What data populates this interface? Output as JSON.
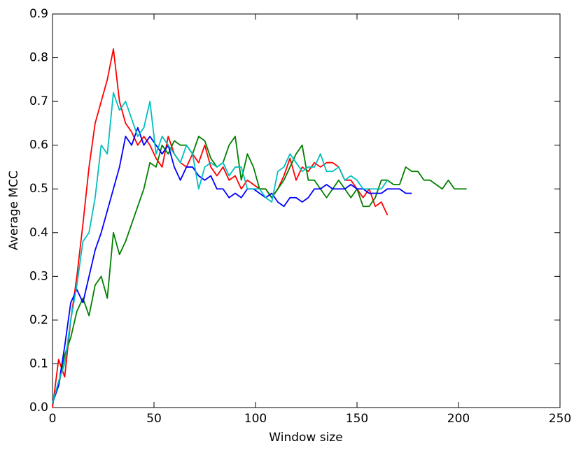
{
  "chart_data": {
    "type": "line",
    "xlabel": "Window size",
    "ylabel": "Average MCC",
    "x": [
      0,
      3,
      6,
      9,
      12,
      15,
      18,
      21,
      24,
      27,
      30,
      33,
      36,
      39,
      42,
      45,
      48,
      51,
      54,
      57,
      60,
      63,
      66,
      69,
      72,
      75,
      78,
      81,
      84,
      87,
      90,
      93,
      96,
      99,
      102,
      105,
      108,
      111,
      114,
      117,
      120,
      123,
      126,
      129,
      132,
      135,
      138,
      141,
      144,
      147,
      150,
      153,
      156,
      159,
      162,
      165,
      168,
      171,
      174,
      177,
      180,
      183,
      186,
      189,
      192,
      195,
      198,
      201,
      204
    ],
    "series": [
      {
        "color": "#ff0000",
        "values": [
          0.0,
          0.11,
          0.07,
          0.2,
          0.3,
          0.42,
          0.55,
          0.65,
          0.7,
          0.75,
          0.82,
          0.7,
          0.65,
          0.63,
          0.6,
          0.62,
          0.6,
          0.57,
          0.55,
          0.62,
          0.58,
          0.56,
          0.55,
          0.58,
          0.56,
          0.6,
          0.55,
          0.53,
          0.55,
          0.52,
          0.53,
          0.5,
          0.52,
          0.51,
          0.5,
          0.5,
          0.48,
          0.5,
          0.53,
          0.57,
          0.52,
          0.55,
          0.54,
          0.56,
          0.55,
          0.56,
          0.56,
          0.55,
          0.52,
          0.52,
          0.5,
          0.48,
          0.5,
          0.46,
          0.47,
          0.44,
          null,
          null,
          null,
          null,
          null,
          null,
          null,
          null,
          null,
          null,
          null,
          null,
          null
        ]
      },
      {
        "color": "#008000",
        "values": [
          0.01,
          0.05,
          0.12,
          0.16,
          0.22,
          0.25,
          0.21,
          0.28,
          0.3,
          0.25,
          0.4,
          0.35,
          0.38,
          0.42,
          0.46,
          0.5,
          0.56,
          0.55,
          0.6,
          0.58,
          0.61,
          0.6,
          0.6,
          0.58,
          0.62,
          0.61,
          0.57,
          0.55,
          0.56,
          0.6,
          0.62,
          0.52,
          0.58,
          0.55,
          0.5,
          0.5,
          0.48,
          0.5,
          0.52,
          0.55,
          0.58,
          0.6,
          0.52,
          0.52,
          0.5,
          0.48,
          0.5,
          0.52,
          0.5,
          0.48,
          0.5,
          0.46,
          0.46,
          0.48,
          0.52,
          0.52,
          0.51,
          0.51,
          0.55,
          0.54,
          0.54,
          0.52,
          0.52,
          0.51,
          0.5,
          0.52,
          0.5,
          0.5,
          0.5
        ]
      },
      {
        "color": "#0000ff",
        "values": [
          0.01,
          0.05,
          0.14,
          0.24,
          0.27,
          0.24,
          0.3,
          0.36,
          0.4,
          0.45,
          0.5,
          0.55,
          0.62,
          0.6,
          0.64,
          0.6,
          0.62,
          0.6,
          0.58,
          0.6,
          0.55,
          0.52,
          0.55,
          0.55,
          0.53,
          0.52,
          0.53,
          0.5,
          0.5,
          0.48,
          0.49,
          0.48,
          0.5,
          0.5,
          0.49,
          0.48,
          0.49,
          0.47,
          0.46,
          0.48,
          0.48,
          0.47,
          0.48,
          0.5,
          0.5,
          0.51,
          0.5,
          0.5,
          0.5,
          0.51,
          0.5,
          0.5,
          0.49,
          0.49,
          0.49,
          0.5,
          0.5,
          0.5,
          0.49,
          0.49,
          null,
          null,
          null,
          null,
          null,
          null,
          null,
          null,
          null
        ]
      },
      {
        "color": "#00bfbf",
        "values": [
          0.01,
          0.06,
          0.1,
          0.2,
          0.28,
          0.38,
          0.4,
          0.48,
          0.6,
          0.58,
          0.72,
          0.68,
          0.7,
          0.66,
          0.62,
          0.64,
          0.7,
          0.58,
          0.62,
          0.6,
          0.58,
          0.56,
          0.6,
          0.58,
          0.5,
          0.55,
          0.56,
          0.55,
          0.56,
          0.53,
          0.55,
          0.55,
          0.5,
          0.5,
          0.5,
          0.48,
          0.47,
          0.54,
          0.55,
          0.58,
          0.56,
          0.54,
          0.55,
          0.55,
          0.58,
          0.54,
          0.54,
          0.55,
          0.52,
          0.53,
          0.52,
          0.5,
          0.5,
          0.5,
          0.5,
          0.52,
          null,
          null,
          null,
          null,
          null,
          null,
          null,
          null,
          null,
          null,
          null,
          null,
          null
        ]
      }
    ],
    "xlim": [
      0,
      250
    ],
    "xticks": [
      0,
      50,
      100,
      150,
      200,
      250
    ],
    "ylim": [
      0,
      0.9
    ],
    "yticks": [
      {
        "value": 0,
        "label": "0.0"
      },
      0.1,
      0.2,
      0.3,
      0.4,
      0.5,
      0.6,
      0.7,
      0.8,
      0.9
    ]
  }
}
